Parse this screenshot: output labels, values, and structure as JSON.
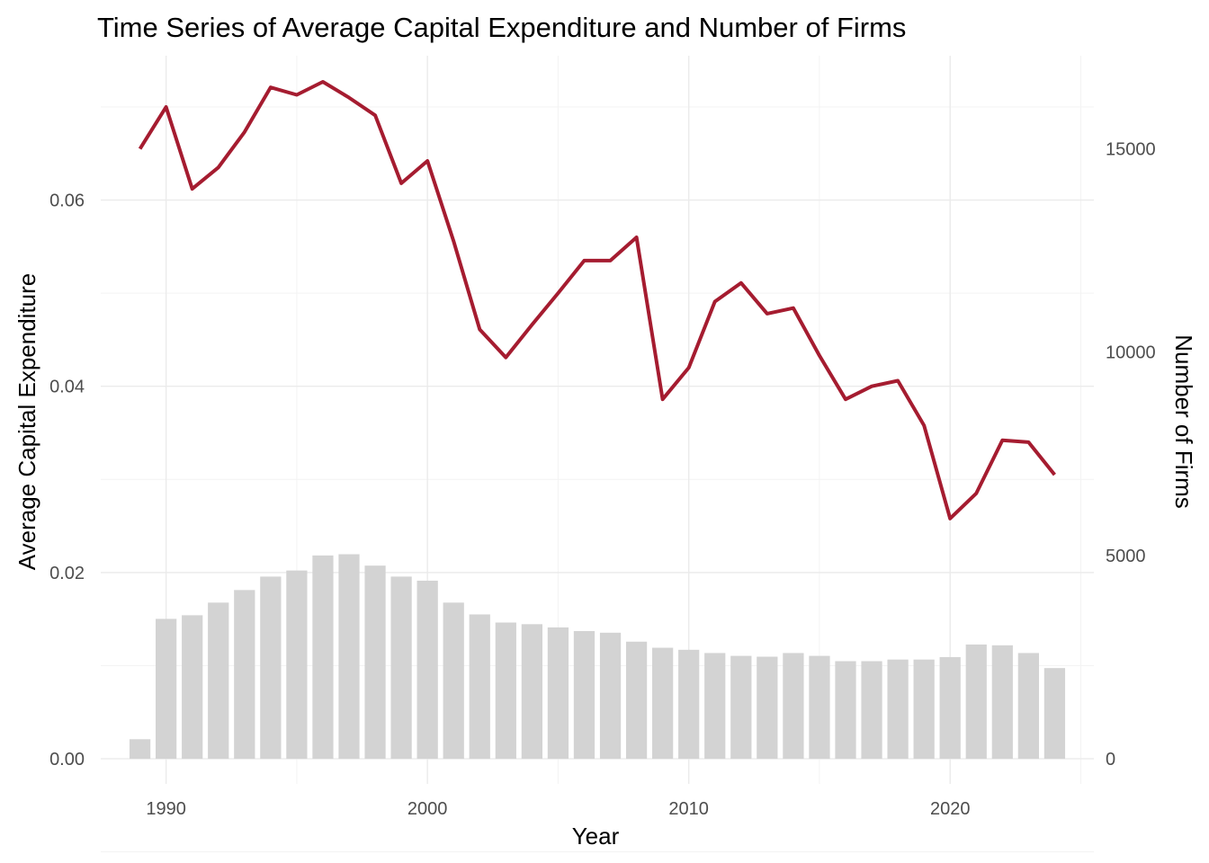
{
  "chart_data": {
    "type": "bar+line",
    "title": "Time Series of Average Capital Expenditure and Number of Firms",
    "xlabel": "Year",
    "ylabel": "Average Capital Expenditure",
    "y2label": "Number of Firms",
    "x_ticks": [
      "1990",
      "2000",
      "2010",
      "2020"
    ],
    "y_ticks": [
      "0.00",
      "0.02",
      "0.04",
      "0.06"
    ],
    "y2_ticks": [
      "0",
      "5000",
      "10000",
      "15000"
    ],
    "xlim": [
      1987.5,
      2025.5
    ],
    "ylim": [
      -0.0027,
      0.0755
    ],
    "y2lim": [
      0,
      15000
    ],
    "grid": true,
    "line_color": "#a51c30",
    "bar_color": "#d3d3d3",
    "years": [
      1989,
      1990,
      1991,
      1992,
      1993,
      1994,
      1995,
      1996,
      1997,
      1998,
      1999,
      2000,
      2001,
      2002,
      2003,
      2004,
      2005,
      2006,
      2007,
      2008,
      2009,
      2010,
      2011,
      2012,
      2013,
      2014,
      2015,
      2016,
      2017,
      2018,
      2019,
      2020,
      2021,
      2022,
      2023,
      2024
    ],
    "series": [
      {
        "name": "Average Capital Expenditure",
        "axis": "left",
        "type": "line",
        "values": [
          0.0655,
          0.07,
          0.0612,
          0.0635,
          0.0673,
          0.0721,
          0.0713,
          0.0727,
          0.071,
          0.0691,
          0.0618,
          0.0642,
          0.0556,
          0.0461,
          0.0431,
          0.0466,
          0.05,
          0.0535,
          0.0535,
          0.056,
          0.0386,
          0.042,
          0.0491,
          0.0511,
          0.0478,
          0.0484,
          0.0433,
          0.0386,
          0.04,
          0.0406,
          0.0358,
          0.0258,
          0.0285,
          0.0342,
          0.034,
          0.0305
        ]
      },
      {
        "name": "Number of Firms",
        "axis": "right",
        "type": "bar",
        "values": [
          480,
          3440,
          3530,
          3840,
          4150,
          4480,
          4630,
          5000,
          5030,
          4750,
          4480,
          4380,
          3840,
          3550,
          3350,
          3310,
          3230,
          3140,
          3100,
          2880,
          2730,
          2680,
          2600,
          2530,
          2510,
          2600,
          2530,
          2400,
          2400,
          2440,
          2440,
          2500,
          2810,
          2790,
          2600,
          2230
        ]
      }
    ]
  }
}
